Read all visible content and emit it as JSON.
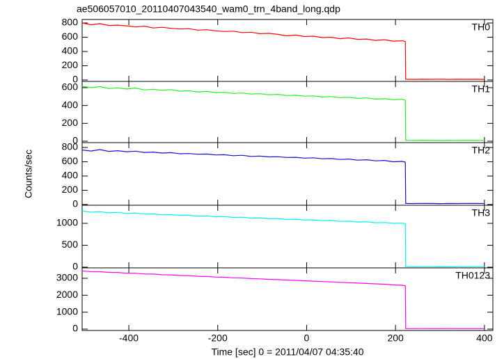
{
  "chart_data": [
    {
      "type": "line",
      "title": "ae506057010_20110407043540_wam0_trn_4band_long.qdp",
      "label": "TH0",
      "xlim": [
        -505,
        419
      ],
      "xticks": [
        -400,
        -200,
        0,
        200,
        400
      ],
      "ylim": [
        -20,
        849
      ],
      "yticks": [
        0,
        200,
        400,
        600,
        800
      ],
      "x": [
        -505,
        -485,
        -465,
        -445,
        -425,
        -405,
        -385,
        -365,
        -345,
        -325,
        -305,
        -285,
        -265,
        -245,
        -225,
        -205,
        -185,
        -165,
        -145,
        -125,
        -105,
        -85,
        -65,
        -45,
        -25,
        -5,
        15,
        35,
        55,
        75,
        95,
        115,
        135,
        155,
        175,
        195,
        215,
        222,
        223,
        240,
        260,
        280,
        300,
        320,
        340,
        360,
        380,
        400
      ],
      "series": [
        {
          "color": "#ff0000",
          "values": [
            800,
            775,
            790,
            765,
            770,
            760,
            745,
            755,
            730,
            740,
            725,
            715,
            720,
            700,
            705,
            690,
            680,
            685,
            665,
            670,
            650,
            655,
            640,
            620,
            630,
            610,
            615,
            595,
            600,
            580,
            590,
            570,
            575,
            555,
            565,
            545,
            550,
            540,
            10,
            8,
            10,
            9,
            11,
            8,
            10,
            9,
            10,
            8
          ]
        }
      ]
    },
    {
      "type": "line",
      "label": "TH1",
      "xlim": [
        -505,
        419
      ],
      "xticks": [
        -400,
        -200,
        0,
        200,
        400
      ],
      "ylim": [
        -16,
        670
      ],
      "yticks": [
        0,
        200,
        400,
        600
      ],
      "x": [
        -505,
        -485,
        -465,
        -445,
        -425,
        -405,
        -385,
        -365,
        -345,
        -325,
        -305,
        -285,
        -265,
        -245,
        -225,
        -205,
        -185,
        -165,
        -145,
        -125,
        -105,
        -85,
        -65,
        -45,
        -25,
        -5,
        15,
        35,
        55,
        75,
        95,
        115,
        135,
        155,
        175,
        195,
        215,
        222,
        223,
        240,
        260,
        280,
        300,
        320,
        340,
        360,
        380,
        400
      ],
      "series": [
        {
          "color": "#22ee22",
          "values": [
            615,
            600,
            612,
            590,
            598,
            585,
            595,
            575,
            582,
            570,
            578,
            560,
            565,
            552,
            558,
            545,
            548,
            535,
            540,
            528,
            532,
            520,
            525,
            512,
            515,
            505,
            508,
            495,
            500,
            488,
            492,
            480,
            485,
            472,
            476,
            465,
            470,
            460,
            10,
            9,
            11,
            10,
            8,
            10,
            9,
            11,
            10,
            9
          ]
        }
      ]
    },
    {
      "type": "line",
      "label": "TH2",
      "ylabel": "Counts/sec",
      "xlim": [
        -505,
        419
      ],
      "xticks": [
        -400,
        -200,
        0,
        200,
        400
      ],
      "ylim": [
        -10,
        868
      ],
      "yticks": [
        0,
        200,
        400,
        600,
        800
      ],
      "x": [
        -505,
        -485,
        -465,
        -445,
        -425,
        -405,
        -385,
        -365,
        -345,
        -325,
        -305,
        -285,
        -265,
        -245,
        -225,
        -205,
        -185,
        -165,
        -145,
        -125,
        -105,
        -85,
        -65,
        -45,
        -25,
        -5,
        15,
        35,
        55,
        75,
        95,
        115,
        135,
        155,
        175,
        195,
        215,
        222,
        223,
        240,
        260,
        280,
        300,
        320,
        340,
        360,
        380,
        400
      ],
      "series": [
        {
          "color": "#1010cc",
          "values": [
            765,
            750,
            770,
            745,
            755,
            740,
            748,
            730,
            735,
            722,
            728,
            712,
            715,
            705,
            708,
            695,
            698,
            685,
            690,
            675,
            680,
            668,
            670,
            660,
            662,
            650,
            655,
            642,
            645,
            632,
            638,
            622,
            628,
            612,
            618,
            600,
            605,
            595,
            15,
            14,
            16,
            15,
            13,
            15,
            14,
            16,
            15,
            14
          ]
        }
      ]
    },
    {
      "type": "line",
      "label": "TH3",
      "xlim": [
        -505,
        419
      ],
      "xticks": [
        -400,
        -200,
        0,
        200,
        400
      ],
      "ylim": [
        -16,
        1413
      ],
      "yticks": [
        0,
        500,
        1000
      ],
      "x": [
        -505,
        -485,
        -465,
        -445,
        -425,
        -405,
        -385,
        -365,
        -345,
        -325,
        -305,
        -285,
        -265,
        -245,
        -225,
        -205,
        -185,
        -165,
        -145,
        -125,
        -105,
        -85,
        -65,
        -45,
        -25,
        -5,
        15,
        35,
        55,
        75,
        95,
        115,
        135,
        155,
        175,
        195,
        215,
        222,
        223,
        240,
        260,
        280,
        300,
        320,
        340,
        360,
        380,
        400
      ],
      "series": [
        {
          "color": "#00f0f0",
          "values": [
            1280,
            1255,
            1265,
            1240,
            1250,
            1225,
            1235,
            1210,
            1215,
            1195,
            1200,
            1180,
            1185,
            1165,
            1170,
            1150,
            1155,
            1135,
            1140,
            1120,
            1125,
            1105,
            1110,
            1090,
            1095,
            1075,
            1080,
            1060,
            1065,
            1045,
            1050,
            1030,
            1035,
            1015,
            1020,
            1000,
            1005,
            990,
            12,
            11,
            13,
            12,
            10,
            12,
            11,
            13,
            12,
            11
          ]
        }
      ]
    },
    {
      "type": "line",
      "label": "TH0123",
      "xlabel": "Time [sec] 0 = 2011/04/07 04:35:40",
      "xlim": [
        -505,
        419
      ],
      "xticks": [
        -400,
        -200,
        0,
        200,
        400
      ],
      "ylim": [
        -82,
        3616
      ],
      "yticks": [
        0,
        1000,
        2000,
        3000
      ],
      "x": [
        -505,
        -485,
        -465,
        -445,
        -425,
        -405,
        -385,
        -365,
        -345,
        -325,
        -305,
        -285,
        -265,
        -245,
        -225,
        -205,
        -185,
        -165,
        -145,
        -125,
        -105,
        -85,
        -65,
        -45,
        -25,
        -5,
        15,
        35,
        55,
        75,
        95,
        115,
        135,
        155,
        175,
        195,
        215,
        222,
        223,
        240,
        260,
        280,
        300,
        320,
        340,
        360,
        380,
        400
      ],
      "series": [
        {
          "color": "#ff00ff",
          "values": [
            3430,
            3395,
            3390,
            3350,
            3345,
            3300,
            3300,
            3255,
            3250,
            3210,
            3200,
            3165,
            3155,
            3120,
            3105,
            3075,
            3060,
            3030,
            3010,
            2985,
            2965,
            2940,
            2920,
            2895,
            2875,
            2850,
            2830,
            2805,
            2785,
            2760,
            2740,
            2715,
            2695,
            2670,
            2650,
            2610,
            2590,
            2570,
            30,
            28,
            32,
            30,
            29,
            31,
            30,
            28,
            30,
            29
          ]
        }
      ]
    }
  ]
}
